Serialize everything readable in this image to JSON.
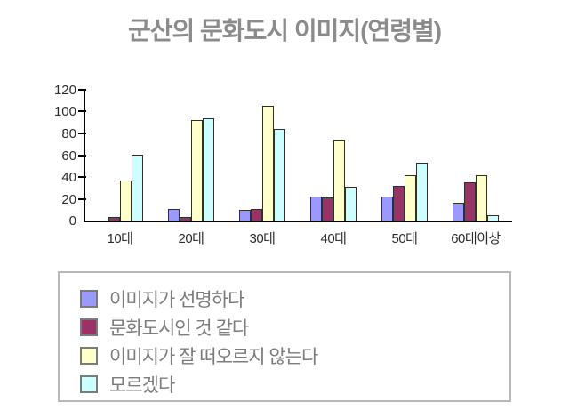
{
  "title": "군산의 문화도시 이미지(연령별)",
  "colors": {
    "background": "#ffffff",
    "title_text": "#8b8b8b",
    "axis": "#000000",
    "bar_border": "#2f2f2f",
    "legend_border": "#b8b8b8",
    "legend_text": "#7c7c7c",
    "series_purple": "#9999ff",
    "series_maroon": "#993366",
    "series_yellow": "#ffffcc",
    "series_cyan": "#ccffff"
  },
  "chart_data": {
    "type": "bar",
    "title": "군산의 문화도시 이미지(연령별)",
    "xlabel": "",
    "ylabel": "",
    "categories": [
      "10대",
      "20대",
      "30대",
      "40대",
      "50대",
      "60대이상"
    ],
    "series": [
      {
        "name": "이미지가 선명하다",
        "color": "#9999ff",
        "values": [
          0,
          11,
          10,
          22,
          22,
          16
        ]
      },
      {
        "name": "문화도시인 것 같다",
        "color": "#993366",
        "values": [
          3,
          3,
          11,
          21,
          32,
          35
        ]
      },
      {
        "name": "이미지가 잘 떠오르지 않는다",
        "color": "#ffffcc",
        "values": [
          37,
          92,
          105,
          74,
          42,
          42
        ]
      },
      {
        "name": "모르겠다",
        "color": "#ccffff",
        "values": [
          60,
          94,
          84,
          31,
          53,
          5
        ]
      }
    ],
    "ylim": [
      0,
      120
    ],
    "yticks": [
      0,
      20,
      40,
      60,
      80,
      100,
      120
    ],
    "grid": false,
    "legend_position": "bottom-box"
  }
}
